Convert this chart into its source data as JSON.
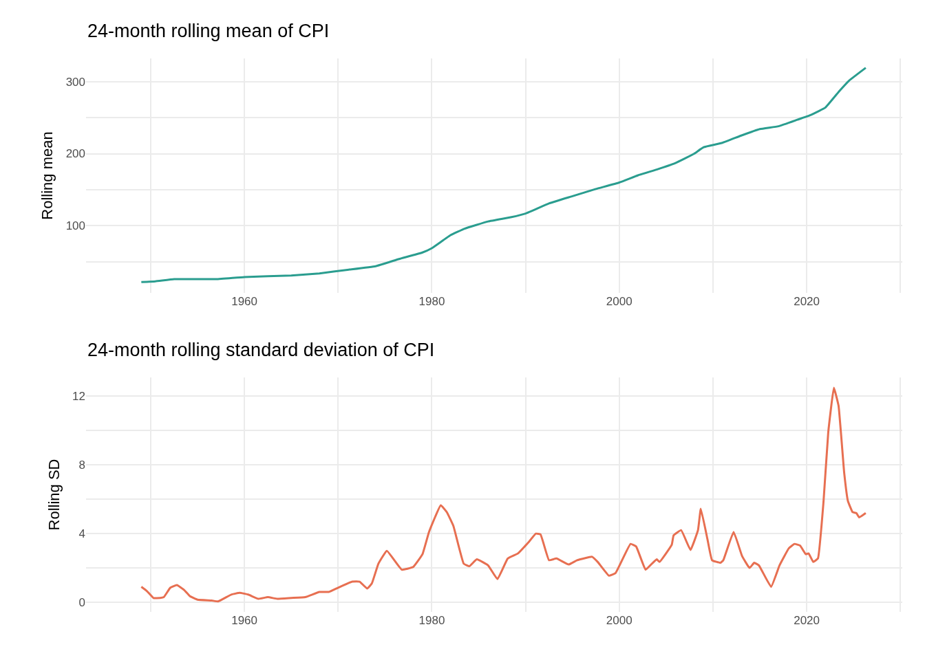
{
  "chart_data": [
    {
      "type": "line",
      "title": "24-month rolling mean of CPI",
      "ylabel": "Rolling mean",
      "color": "#2a9d8f",
      "grid": true,
      "x": [
        1949,
        1950.5,
        1952.5,
        1957,
        1960,
        1965,
        1968,
        1971,
        1974,
        1976.5,
        1979,
        1980,
        1982,
        1983.5,
        1986,
        1988.5,
        1990,
        1992.5,
        1995,
        1997.5,
        2000,
        2002,
        2004,
        2006,
        2008,
        2009,
        2011,
        2013,
        2015,
        2017,
        2019,
        2020.5,
        2022,
        2023.5,
        2024.5,
        2026.3
      ],
      "values": [
        22,
        23,
        26,
        26,
        29,
        31,
        34,
        39,
        44,
        54,
        63,
        69,
        87,
        96,
        106,
        112,
        117,
        131,
        141,
        151,
        160,
        170,
        178,
        187,
        200,
        209,
        215,
        225,
        234,
        238,
        247,
        254,
        264,
        287,
        301,
        319
      ],
      "xlim": [
        1943.1,
        2030.2
      ],
      "ylim": [
        7,
        332
      ],
      "xticks": [
        {
          "value": 1950,
          "label": null
        },
        1960,
        {
          "value": 1970,
          "label": null
        },
        1980,
        {
          "value": 1990,
          "label": null
        },
        2000,
        {
          "value": 2010,
          "label": null
        },
        2020,
        {
          "value": 2030,
          "label": null
        }
      ],
      "yticks": [
        {
          "value": 50,
          "label": null
        },
        100,
        {
          "value": 150,
          "label": null
        },
        200,
        {
          "value": 250,
          "label": null
        },
        300
      ]
    },
    {
      "type": "line",
      "title": "24-month rolling standard deviation of CPI",
      "ylabel": "Rolling SD",
      "color": "#e76f51",
      "grid": true,
      "x": [
        1949,
        1949.6,
        1950.3,
        1951,
        1951.4,
        1952.1,
        1952.8,
        1953.6,
        1954.2,
        1955,
        1956.5,
        1957.2,
        1958.6,
        1959.5,
        1960.4,
        1961.5,
        1962.5,
        1963.5,
        1965,
        1966.5,
        1968,
        1969,
        1970,
        1971.5,
        1972.3,
        1973.1,
        1973.6,
        1974.3,
        1975.2,
        1976.8,
        1978,
        1979,
        1979.7,
        1980.95,
        1981.6,
        1982.3,
        1983.4,
        1984,
        1984.8,
        1986,
        1987,
        1988.1,
        1989.2,
        1990.4,
        1991.1,
        1991.6,
        1992.5,
        1993.3,
        1994.6,
        1995.5,
        1997.1,
        1997.7,
        1998.9,
        1999.6,
        2001.2,
        2001.8,
        2002.8,
        2003.3,
        2004,
        2004.3,
        2005.6,
        2005.8,
        2006.6,
        2007.6,
        2008.4,
        2008.7,
        2009.4,
        2009.9,
        2010.8,
        2011.1,
        2012.2,
        2013.1,
        2013.9,
        2014.4,
        2014.9,
        2016.2,
        2017.1,
        2018.1,
        2018.7,
        2019.3,
        2019.9,
        2020.2,
        2020.7,
        2021.2,
        2021.8,
        2022.3,
        2022.9,
        2023.4,
        2024,
        2024.4,
        2024.9,
        2025.3,
        2025.6,
        2026.3
      ],
      "values": [
        0.9,
        0.65,
        0.25,
        0.25,
        0.3,
        0.85,
        1.0,
        0.7,
        0.35,
        0.15,
        0.1,
        0.05,
        0.45,
        0.55,
        0.45,
        0.2,
        0.3,
        0.2,
        0.25,
        0.3,
        0.6,
        0.6,
        0.85,
        1.2,
        1.2,
        0.8,
        1.1,
        2.25,
        3.0,
        1.9,
        2.05,
        2.8,
        4.1,
        5.65,
        5.25,
        4.45,
        2.25,
        2.1,
        2.5,
        2.15,
        1.35,
        2.55,
        2.85,
        3.55,
        4.0,
        3.95,
        2.45,
        2.55,
        2.2,
        2.45,
        2.65,
        2.35,
        1.55,
        1.7,
        3.4,
        3.25,
        1.9,
        2.15,
        2.5,
        2.35,
        3.35,
        3.9,
        4.2,
        3.05,
        4.2,
        5.45,
        3.7,
        2.45,
        2.3,
        2.45,
        4.1,
        2.7,
        2.0,
        2.3,
        2.15,
        0.9,
        2.15,
        3.15,
        3.4,
        3.3,
        2.8,
        2.85,
        2.35,
        2.55,
        5.9,
        9.9,
        12.5,
        11.45,
        7.55,
        5.9,
        5.25,
        5.2,
        4.95,
        5.2
      ],
      "xlim": [
        1943.1,
        2030.2
      ],
      "ylim": [
        -0.56,
        13.1
      ],
      "xticks": [
        {
          "value": 1950,
          "label": null
        },
        1960,
        {
          "value": 1970,
          "label": null
        },
        1980,
        {
          "value": 1990,
          "label": null
        },
        2000,
        {
          "value": 2010,
          "label": null
        },
        2020,
        {
          "value": 2030,
          "label": null
        }
      ],
      "yticks": [
        0,
        {
          "value": 2,
          "label": null
        },
        4,
        {
          "value": 6,
          "label": null
        },
        8,
        {
          "value": 10,
          "label": null
        },
        12
      ]
    }
  ]
}
